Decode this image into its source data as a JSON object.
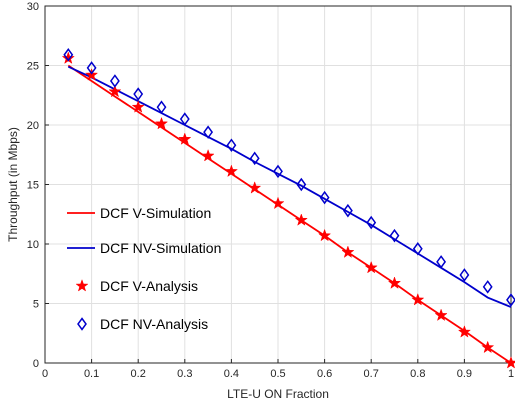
{
  "chart_data": {
    "type": "line",
    "xlabel": "LTE-U ON Fraction",
    "ylabel": "Throughput (in Mbps)",
    "xlim": [
      0,
      1
    ],
    "ylim": [
      0,
      30
    ],
    "xticks": [
      "0",
      "0.1",
      "0.2",
      "0.3",
      "0.4",
      "0.5",
      "0.6",
      "0.7",
      "0.8",
      "0.9",
      "1"
    ],
    "yticks": [
      "0",
      "5",
      "10",
      "15",
      "20",
      "25",
      "30"
    ],
    "grid": true,
    "legend_position": "left-middle",
    "series": [
      {
        "name": "DCF V-Simulation",
        "style": "line",
        "color": "#ff0000",
        "x": [
          0.05,
          0.1,
          0.15,
          0.2,
          0.25,
          0.3,
          0.35,
          0.4,
          0.45,
          0.5,
          0.55,
          0.6,
          0.65,
          0.7,
          0.75,
          0.8,
          0.85,
          0.9,
          0.95,
          1.0
        ],
        "y": [
          25.0,
          23.7,
          22.4,
          21.1,
          19.8,
          18.5,
          17.2,
          15.9,
          14.6,
          13.3,
          12.0,
          10.7,
          9.3,
          8.0,
          6.7,
          5.3,
          4.0,
          2.7,
          1.3,
          0.0
        ]
      },
      {
        "name": "DCF NV-Simulation",
        "style": "line",
        "color": "#0000cc",
        "x": [
          0.05,
          0.1,
          0.15,
          0.2,
          0.25,
          0.3,
          0.35,
          0.4,
          0.45,
          0.5,
          0.55,
          0.6,
          0.65,
          0.7,
          0.75,
          0.8,
          0.85,
          0.9,
          0.95,
          1.0
        ],
        "y": [
          24.9,
          24.0,
          23.0,
          22.0,
          21.0,
          20.0,
          19.0,
          18.0,
          16.9,
          15.9,
          14.9,
          13.8,
          12.7,
          11.6,
          10.4,
          9.2,
          8.0,
          6.8,
          5.5,
          4.7
        ]
      },
      {
        "name": "DCF V-Analysis",
        "style": "marker-star",
        "color": "#ff0000",
        "x": [
          0.05,
          0.1,
          0.15,
          0.2,
          0.25,
          0.3,
          0.35,
          0.4,
          0.45,
          0.5,
          0.55,
          0.6,
          0.65,
          0.7,
          0.75,
          0.8,
          0.85,
          0.9,
          0.95,
          1.0
        ],
        "y": [
          25.6,
          24.2,
          22.8,
          21.5,
          20.1,
          18.8,
          17.4,
          16.1,
          14.7,
          13.4,
          12.0,
          10.7,
          9.3,
          8.0,
          6.7,
          5.3,
          4.0,
          2.6,
          1.3,
          0.0
        ]
      },
      {
        "name": "DCF NV-Analysis",
        "style": "marker-diamond",
        "color": "#0000cc",
        "x": [
          0.05,
          0.1,
          0.15,
          0.2,
          0.25,
          0.3,
          0.35,
          0.4,
          0.45,
          0.5,
          0.55,
          0.6,
          0.65,
          0.7,
          0.75,
          0.8,
          0.85,
          0.9,
          0.95,
          1.0
        ],
        "y": [
          25.9,
          24.8,
          23.7,
          22.6,
          21.5,
          20.5,
          19.4,
          18.3,
          17.2,
          16.1,
          15.0,
          13.9,
          12.8,
          11.8,
          10.7,
          9.6,
          8.5,
          7.4,
          6.4,
          5.3
        ]
      }
    ]
  }
}
